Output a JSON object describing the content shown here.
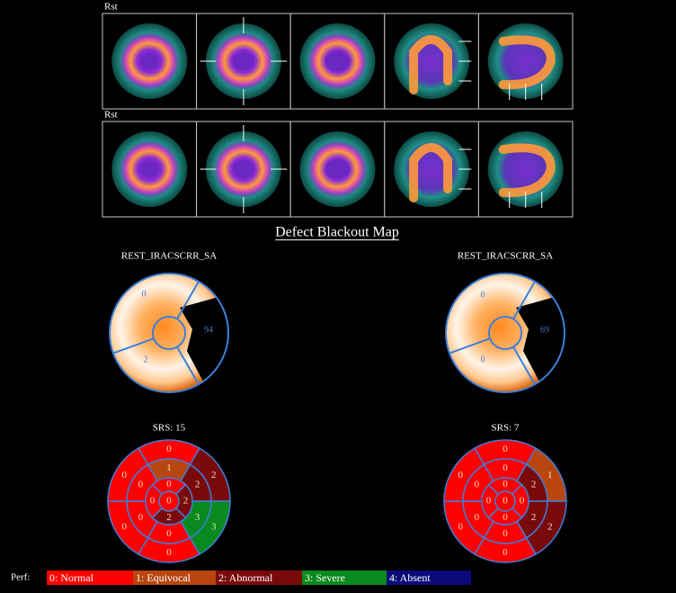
{
  "scans": [
    {
      "label": "Rst"
    },
    {
      "label": "Rst"
    }
  ],
  "title": "Defect Blackout Map",
  "polar_maps": [
    {
      "label": "REST_IRACSCRR_SA",
      "region_values": [
        0,
        94,
        2
      ]
    },
    {
      "label": "REST_IRACSCRR_SA",
      "region_values": [
        0,
        69,
        0
      ]
    }
  ],
  "score_maps": [
    {
      "label": "SRS: 15",
      "segments": [
        0,
        2,
        3,
        0,
        0,
        0,
        1,
        2,
        3,
        0,
        0,
        0,
        0,
        2,
        2,
        0,
        0
      ]
    },
    {
      "label": "SRS: 7",
      "segments": [
        0,
        1,
        2,
        0,
        0,
        0,
        0,
        2,
        2,
        0,
        0,
        0,
        0,
        0,
        0,
        0,
        0
      ]
    }
  ],
  "legend": {
    "label": "Perf:",
    "items": [
      {
        "label": "0: Normal",
        "color": "#ff0000"
      },
      {
        "label": "1: Equivocal",
        "color": "#b8460e"
      },
      {
        "label": "2: Abnormal",
        "color": "#7a0a0a"
      },
      {
        "label": "3: Severe",
        "color": "#0a8a1e"
      },
      {
        "label": "4: Absent",
        "color": "#0a0a7a"
      }
    ]
  }
}
